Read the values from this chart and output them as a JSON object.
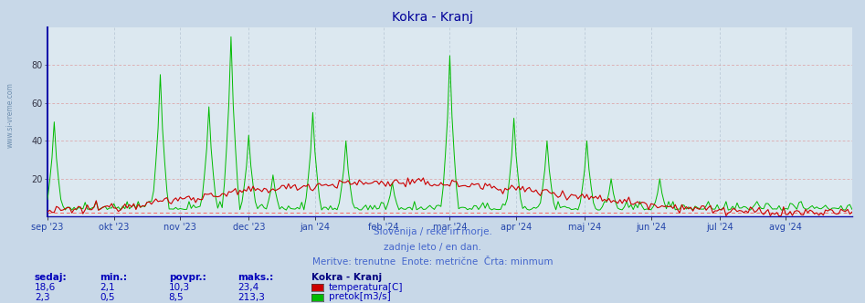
{
  "title": "Kokra - Kranj",
  "title_color": "#000099",
  "bg_color": "#c8d8e8",
  "plot_bg_color": "#dce8f0",
  "grid_color_h": "#dd8888",
  "grid_color_v": "#aabbcc",
  "ylim": [
    0,
    100
  ],
  "yticks": [
    20,
    40,
    60,
    80
  ],
  "temp_color": "#cc0000",
  "flow_color": "#00bb00",
  "minline_color": "#ff5555",
  "spine_color": "#2222aa",
  "x_label_color": "#2244aa",
  "subtitle1": "Slovenija / reke in morje.",
  "subtitle2": "zadnje leto / en dan.",
  "subtitle3": "Meritve: trenutne  Enote: metrične  Črta: minmum",
  "subtitle_color": "#4466cc",
  "legend_title": "Kokra - Kranj",
  "legend_title_color": "#000080",
  "legend_items": [
    "temperatura[C]",
    "pretok[m3/s]"
  ],
  "legend_colors": [
    "#cc0000",
    "#00bb00"
  ],
  "table_headers": [
    "sedaj:",
    "min.:",
    "povpr.:",
    "maks.:"
  ],
  "table_row1": [
    "18,6",
    "2,1",
    "10,3",
    "23,4"
  ],
  "table_row2": [
    "2,3",
    "0,5",
    "8,5",
    "213,3"
  ],
  "table_color": "#0000bb",
  "xticklabels": [
    "sep '23",
    "okt '23",
    "nov '23",
    "dec '23",
    "jan '24",
    "feb '24",
    "mar '24",
    "apr '24",
    "maj '24",
    "jun '24",
    "jul '24",
    "avg '24"
  ],
  "watermark": "www.si-vreme.com",
  "side_watermark": "www.si-vreme.com"
}
